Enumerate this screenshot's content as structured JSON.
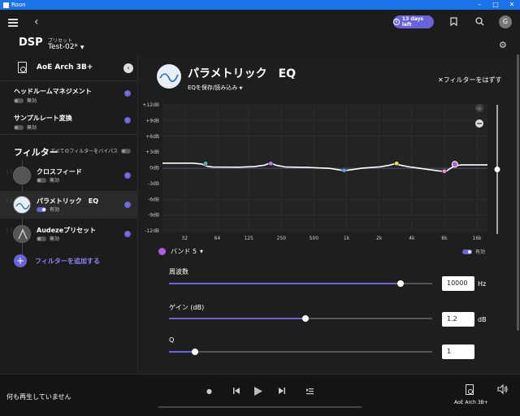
{
  "window": {
    "title": "Roon"
  },
  "topbar": {
    "trial_label": "13 days left",
    "avatar_initial": "G"
  },
  "dsp": {
    "title": "DSP",
    "preset_label": "プリセット",
    "preset_value": "Test-02*"
  },
  "sidebar": {
    "device_name": "AoE Arch 3B+",
    "sections": [
      {
        "title": "ヘッドルームマネジメント",
        "status": "無効",
        "enabled": false
      },
      {
        "title": "サンプルレート変換",
        "status": "無効",
        "enabled": false
      }
    ],
    "filters_title": "フィルター",
    "bypass_label": "すべてのフィルターをバイパス",
    "filters": [
      {
        "name": "クロスフィード",
        "status": "無効",
        "enabled": false
      },
      {
        "name": "パラメトリック　EQ",
        "status": "有効",
        "enabled": true
      },
      {
        "name": "Audezeプリセット",
        "status": "無効",
        "enabled": false
      }
    ],
    "add_filter_label": "フィルターを追加する"
  },
  "main": {
    "title": "パラメトリック　EQ",
    "save_load": "EQを保存/読み込み",
    "remove_label": "フィルターをはずす",
    "band_label": "バンド 5",
    "band_enabled_label": "有効",
    "params": [
      {
        "label": "周波数",
        "value": "10000",
        "unit": "Hz",
        "fraction": 0.88
      },
      {
        "label": "ゲイン (dB)",
        "value": "1.2",
        "unit": "dB",
        "fraction": 0.52
      },
      {
        "label": "Q",
        "value": "1",
        "unit": "",
        "fraction": 0.1
      }
    ]
  },
  "chart_data": {
    "type": "line",
    "y_ticks": [
      "+12dB",
      "+9dB",
      "+6dB",
      "+3dB",
      "0dB",
      "-3dB",
      "-6dB",
      "-9dB",
      "-12dB"
    ],
    "x_ticks": [
      "32",
      "64",
      "125",
      "250",
      "500",
      "1k",
      "2k",
      "4k",
      "8k",
      "16k"
    ],
    "ylim": [
      -12,
      12
    ],
    "gain_scale": 0.55,
    "band_points": [
      {
        "freq": 50,
        "gain": 1.5,
        "color": "#5ab0b8"
      },
      {
        "freq": 200,
        "gain": 1.5,
        "color": "#c07ae0"
      },
      {
        "freq": 950,
        "gain": -0.9,
        "color": "#6aa0d8"
      },
      {
        "freq": 2900,
        "gain": 1.5,
        "color": "#e8e060"
      },
      {
        "freq": 8000,
        "gain": -1.2,
        "color": "#e890c8"
      },
      {
        "freq": 10000,
        "gain": 1.2,
        "color": "#b05ce8"
      }
    ],
    "curve": [
      [
        20,
        1.6
      ],
      [
        38,
        1.6
      ],
      [
        46,
        1.3
      ],
      [
        52,
        0.5
      ],
      [
        58,
        0.25
      ],
      [
        100,
        0.2
      ],
      [
        140,
        0.4
      ],
      [
        175,
        0.9
      ],
      [
        198,
        1.7
      ],
      [
        222,
        0.9
      ],
      [
        275,
        0.25
      ],
      [
        450,
        0.1
      ],
      [
        700,
        -0.2
      ],
      [
        880,
        -0.8
      ],
      [
        950,
        -1.0
      ],
      [
        1050,
        -0.8
      ],
      [
        1400,
        -0.1
      ],
      [
        2050,
        0.35
      ],
      [
        2500,
        0.9
      ],
      [
        2800,
        1.4
      ],
      [
        3150,
        0.9
      ],
      [
        3800,
        0.3
      ],
      [
        5500,
        -0.5
      ],
      [
        7200,
        -1.1
      ],
      [
        8300,
        -1.2
      ],
      [
        9000,
        -0.3
      ],
      [
        10000,
        0.7
      ],
      [
        11500,
        1.0
      ],
      [
        14000,
        1.0
      ],
      [
        20000,
        1.0
      ]
    ],
    "gain_slider_level": 0.5
  }
}
